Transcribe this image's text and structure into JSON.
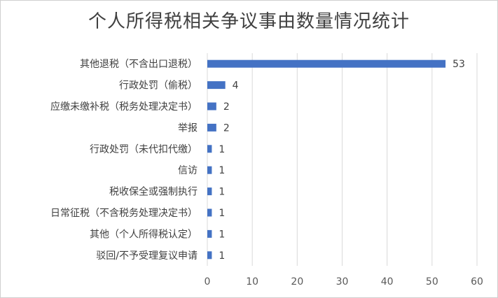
{
  "colors": {
    "bar": "#4472c4",
    "grid": "#d9d9d9",
    "text": "#404040"
  },
  "chart_data": {
    "type": "bar",
    "orientation": "horizontal",
    "title": "个人所得税相关争议事由数量情况统计",
    "categories": [
      "其他退税（不含出口退税）",
      "行政处罚（偷税）",
      "应缴未缴补税（税务处理决定书）",
      "举报",
      "行政处罚（未代扣代缴）",
      "信访",
      "税收保全或强制执行",
      "日常征税（不含税务处理决定书）",
      "其他（个人所得税认定）",
      "驳回/不予受理复议申请"
    ],
    "values": [
      53,
      4,
      2,
      2,
      1,
      1,
      1,
      1,
      1,
      1
    ],
    "xlim": [
      0,
      60
    ],
    "xticks": [
      0,
      10,
      20,
      30,
      40,
      50,
      60
    ],
    "grid": true,
    "legend": "none"
  }
}
